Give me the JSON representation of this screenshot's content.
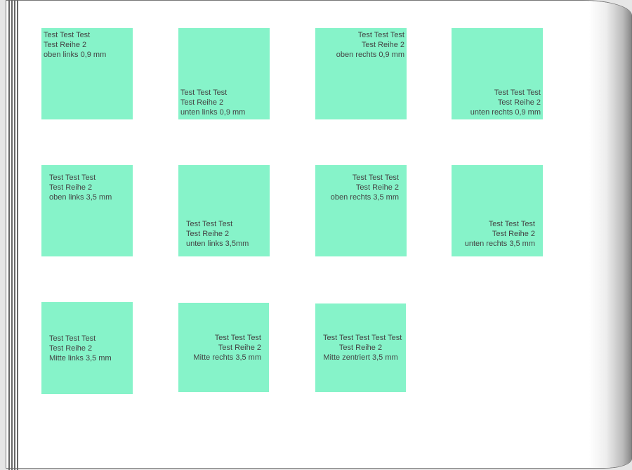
{
  "box_color": "#86f3c9",
  "boxes": [
    {
      "lines": [
        "Test Test Test",
        "Test Reihe 2",
        "oben links 0,9 mm"
      ]
    },
    {
      "lines": [
        "Test Test Test",
        "Test Reihe 2",
        "unten links 0,9 mm"
      ]
    },
    {
      "lines": [
        "Test Test Test",
        "Test Reihe 2",
        "oben rechts 0,9 mm"
      ]
    },
    {
      "lines": [
        "Test Test Test",
        "Test Reihe 2",
        "unten rechts 0,9 mm"
      ]
    },
    {
      "lines": [
        "Test Test Test",
        "Test Reihe 2",
        "oben links 3,5 mm"
      ]
    },
    {
      "lines": [
        "Test Test Test",
        "Test Reihe 2",
        "unten links 3,5mm"
      ]
    },
    {
      "lines": [
        "Test Test Test",
        "Test Reihe 2",
        "oben rechts 3,5 mm"
      ]
    },
    {
      "lines": [
        "Test Test Test",
        "Test Reihe 2",
        "unten rechts 3,5 mm"
      ]
    },
    {
      "lines": [
        "Test Test Test",
        "Test Reihe 2",
        "Mitte links 3,5 mm"
      ]
    },
    {
      "lines": [
        "Test Test Test",
        "Test Reihe 2",
        "Mitte rechts 3,5 mm"
      ]
    },
    {
      "lines": [
        "Test Test Test Test Test",
        "Test Reihe 2",
        "Mitte zentriert 3,5 mm"
      ]
    }
  ]
}
